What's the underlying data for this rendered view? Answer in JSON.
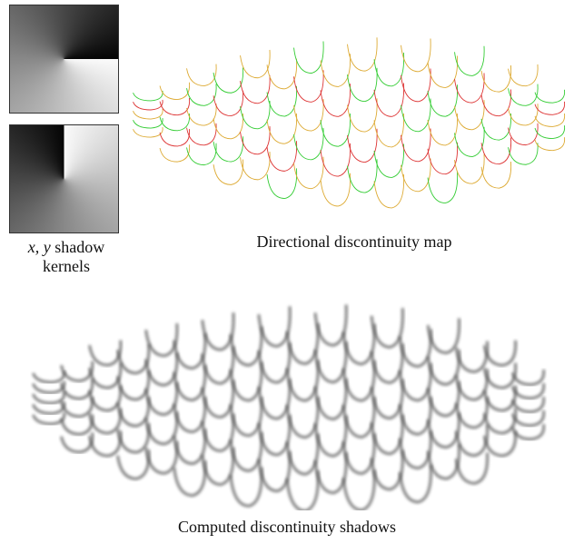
{
  "kernels_caption": {
    "variables": "x, y",
    "text": "shadow kernels"
  },
  "map_caption": "Directional discontinuity map",
  "shadows_caption": "Computed discontinuity shadows"
}
